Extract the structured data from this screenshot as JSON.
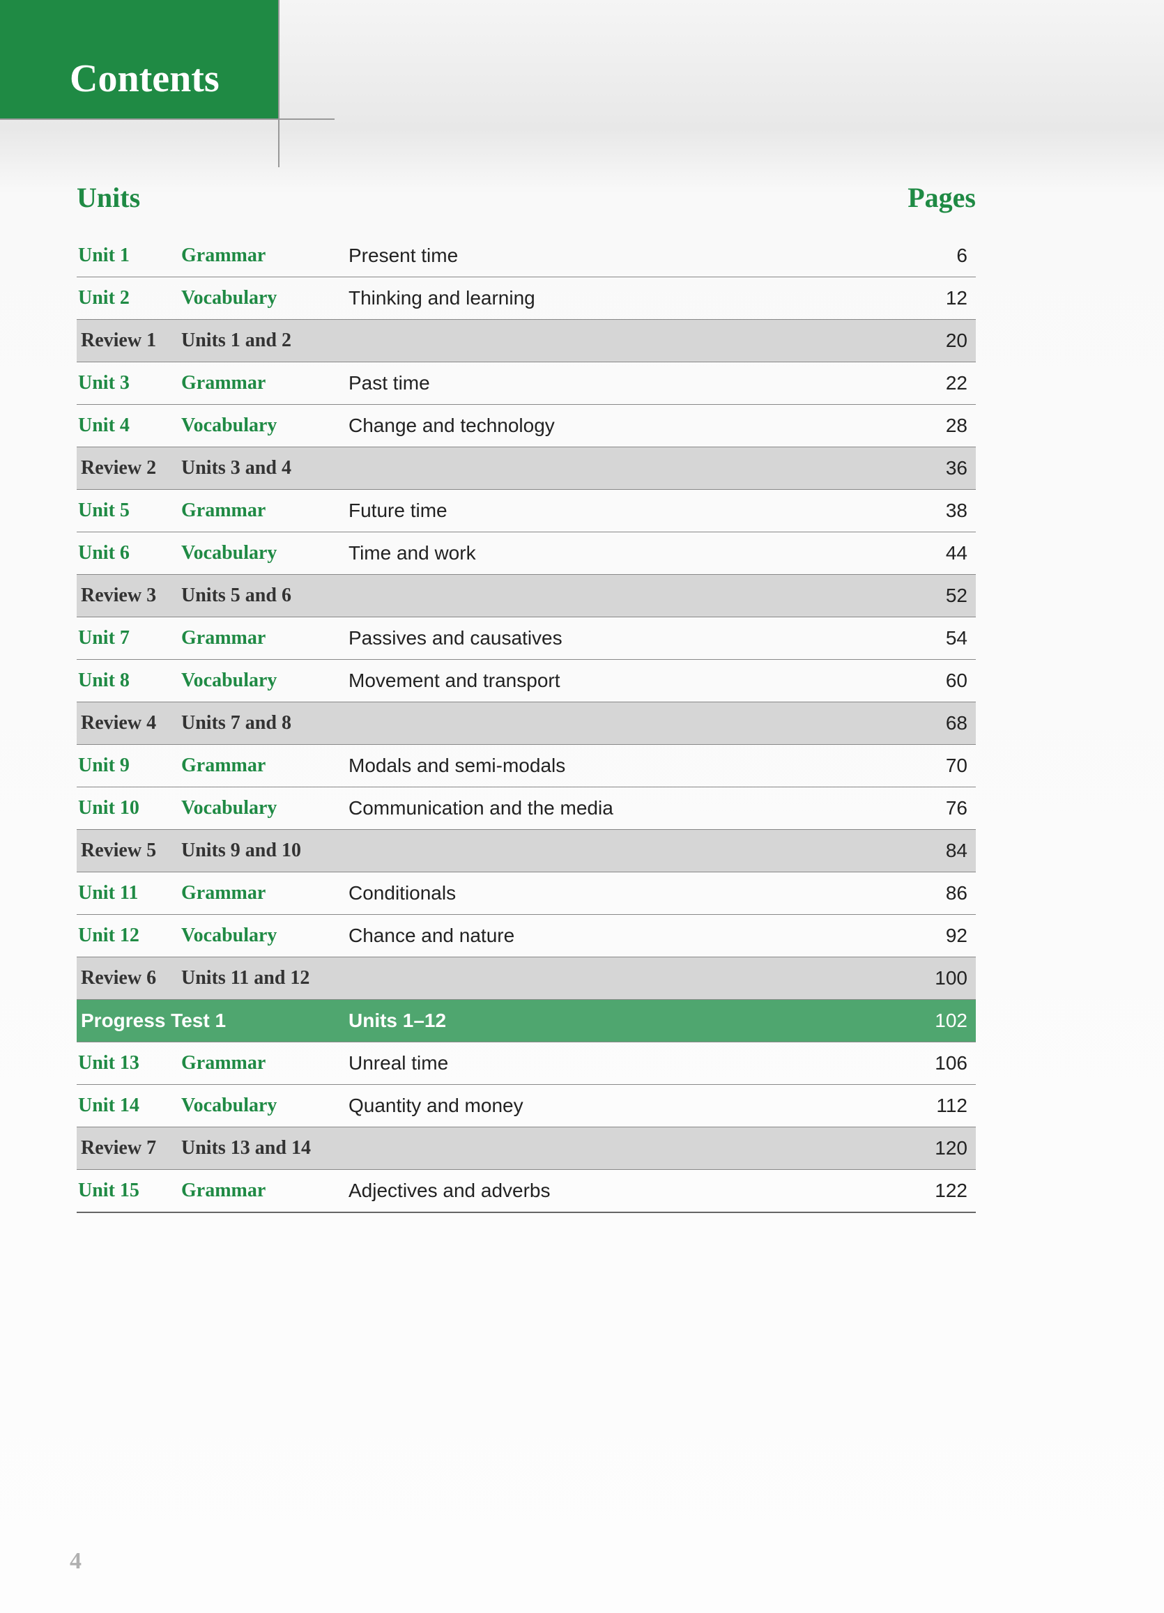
{
  "colors": {
    "brand_green": "#1f8a44",
    "progress_green": "#4fa66f",
    "review_grey": "#d6d6d6",
    "page_bg_top": "#f5f5f5",
    "page_bg_bottom": "#fdfdfd",
    "rule_grey": "#888888",
    "text_black": "#222222",
    "footer_grey": "#b0b0b0"
  },
  "typography": {
    "serif_family": "Georgia",
    "sans_family": "Arial",
    "title_size_pt": 42,
    "header_size_pt": 30,
    "row_size_pt": 21
  },
  "header": {
    "title": "Contents"
  },
  "columns": {
    "left": "Units",
    "right": "Pages"
  },
  "footer": {
    "page_number": "4"
  },
  "rows": [
    {
      "kind": "unit",
      "unit": "Unit 1",
      "type": "Grammar",
      "desc": "Present time",
      "page": "6"
    },
    {
      "kind": "unit",
      "unit": "Unit 2",
      "type": "Vocabulary",
      "desc": "Thinking and learning",
      "page": "12"
    },
    {
      "kind": "review",
      "unit": "Review 1",
      "type": "Units 1 and 2",
      "desc": "",
      "page": "20"
    },
    {
      "kind": "unit",
      "unit": "Unit 3",
      "type": "Grammar",
      "desc": "Past time",
      "page": "22"
    },
    {
      "kind": "unit",
      "unit": "Unit 4",
      "type": "Vocabulary",
      "desc": "Change and technology",
      "page": "28"
    },
    {
      "kind": "review",
      "unit": "Review 2",
      "type": "Units 3 and 4",
      "desc": "",
      "page": "36"
    },
    {
      "kind": "unit",
      "unit": "Unit 5",
      "type": "Grammar",
      "desc": "Future time",
      "page": "38"
    },
    {
      "kind": "unit",
      "unit": "Unit 6",
      "type": "Vocabulary",
      "desc": "Time and work",
      "page": "44"
    },
    {
      "kind": "review",
      "unit": "Review 3",
      "type": "Units 5 and 6",
      "desc": "",
      "page": "52"
    },
    {
      "kind": "unit",
      "unit": "Unit 7",
      "type": "Grammar",
      "desc": "Passives and causatives",
      "page": "54"
    },
    {
      "kind": "unit",
      "unit": "Unit 8",
      "type": "Vocabulary",
      "desc": "Movement and transport",
      "page": "60"
    },
    {
      "kind": "review",
      "unit": "Review 4",
      "type": "Units 7 and 8",
      "desc": "",
      "page": "68"
    },
    {
      "kind": "unit",
      "unit": "Unit 9",
      "type": "Grammar",
      "desc": "Modals and semi-modals",
      "page": "70"
    },
    {
      "kind": "unit",
      "unit": "Unit 10",
      "type": "Vocabulary",
      "desc": "Communication and the media",
      "page": "76"
    },
    {
      "kind": "review",
      "unit": "Review 5",
      "type": "Units 9 and 10",
      "desc": "",
      "page": "84"
    },
    {
      "kind": "unit",
      "unit": "Unit 11",
      "type": "Grammar",
      "desc": "Conditionals",
      "page": "86"
    },
    {
      "kind": "unit",
      "unit": "Unit 12",
      "type": "Vocabulary",
      "desc": "Chance and nature",
      "page": "92"
    },
    {
      "kind": "review",
      "unit": "Review 6",
      "type": "Units 11 and 12",
      "desc": "",
      "page": "100"
    },
    {
      "kind": "progress",
      "unit": "Progress Test 1",
      "type": "",
      "desc": "Units 1–12",
      "page": "102"
    },
    {
      "kind": "unit",
      "unit": "Unit 13",
      "type": "Grammar",
      "desc": "Unreal time",
      "page": "106"
    },
    {
      "kind": "unit",
      "unit": "Unit 14",
      "type": "Vocabulary",
      "desc": "Quantity and money",
      "page": "112"
    },
    {
      "kind": "review",
      "unit": "Review 7",
      "type": "Units 13 and 14",
      "desc": "",
      "page": "120"
    },
    {
      "kind": "unit",
      "unit": "Unit 15",
      "type": "Grammar",
      "desc": "Adjectives and adverbs",
      "page": "122"
    }
  ]
}
